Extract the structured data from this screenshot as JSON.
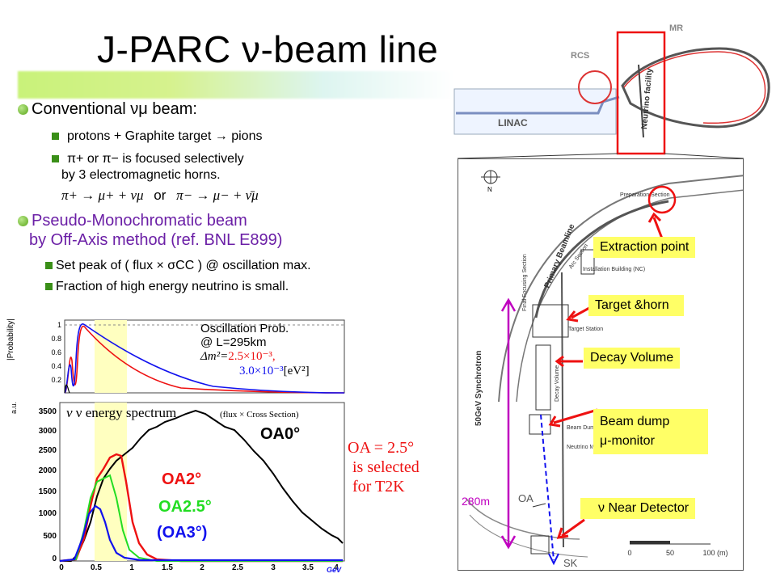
{
  "title": "J-PARC ν-beam line",
  "bullets": {
    "conventional": "Conventional νμ beam:",
    "protons": "protons + Graphite target → pions",
    "focus_line1": "π+ or π− is focused selectively",
    "focus_line2": "by 3 electromagnetic horns.",
    "decay_left": "π+ → μ+ + νμ",
    "decay_or": "or",
    "decay_right": "π− → μ− + ν̄μ",
    "pseudo_line1": "Pseudo-Monochromatic beam",
    "pseudo_line2": "by Off-Axis method (ref. BNL E899)",
    "set_peak": "Set peak of ( flux × σCC ) @ oscillation max.",
    "fraction": "Fraction of high energy neutrino is small."
  },
  "osc_plot": {
    "label_line1": "Oscillation Prob.",
    "label_line2": "@ L=295km",
    "dm_prefix": "Δm²=",
    "dm_value1": "2.5×10⁻³,",
    "dm_value2": "3.0×10⁻³",
    "dm_unit": "[eV²]",
    "ylabel": "|Probability|",
    "yticks": [
      "1",
      "0.8",
      "0.6",
      "0.4",
      "0.2"
    ]
  },
  "spec_plot": {
    "label": "ν energy spectrum",
    "label_small": "(flux × Cross Section)",
    "ylabel": "a.u.",
    "yticks": [
      "3500",
      "3000",
      "2500",
      "2000",
      "1500",
      "1000",
      "500",
      "0"
    ],
    "xticks": [
      "0",
      "0.5",
      "1",
      "1.5",
      "2",
      "2.5",
      "3",
      "3.5",
      "4"
    ],
    "xunit": "GeV",
    "oa0": "OA0°",
    "oa2": "OA2°",
    "oa25": "OA2.5°",
    "oa3": "(OA3°)"
  },
  "oa_note": {
    "line1": "OA = 2.5°",
    "line2": "is selected",
    "line3": "for T2K"
  },
  "facility": {
    "mr": "MR",
    "rcs": "RCS",
    "linac": "LINAC",
    "neutrino_facility": "Neutrino facility"
  },
  "map": {
    "primary": "Primary Beamline",
    "arc": "Arc Section",
    "prep": "Preparation Section",
    "syncro": "50GeV Synchrotron",
    "ff": "Final Focusing Section",
    "install": "Installation Building (NC)",
    "target_station": "Target Station",
    "decay_vol": "Decay Volume",
    "beam_dump": "Beam Dump",
    "neutrino_monitor": "Neutrino Monitor Building (NM)",
    "scale_ticks": [
      "0",
      "50",
      "100 (m)"
    ],
    "length": "280m",
    "oa": "OA",
    "sk": "SK",
    "north": "N"
  },
  "labels": {
    "extraction": "Extraction point",
    "target": "Target &horn",
    "decay": "Decay Volume",
    "dump_line1": "Beam dump",
    "dump_line2": "μ-monitor",
    "near": "ν Near Detector"
  },
  "colors": {
    "accent_red": "#e11111",
    "green": "#22dd22",
    "blue": "#1111ee",
    "purple": "#c000c0",
    "highlight": "#ffff66"
  }
}
